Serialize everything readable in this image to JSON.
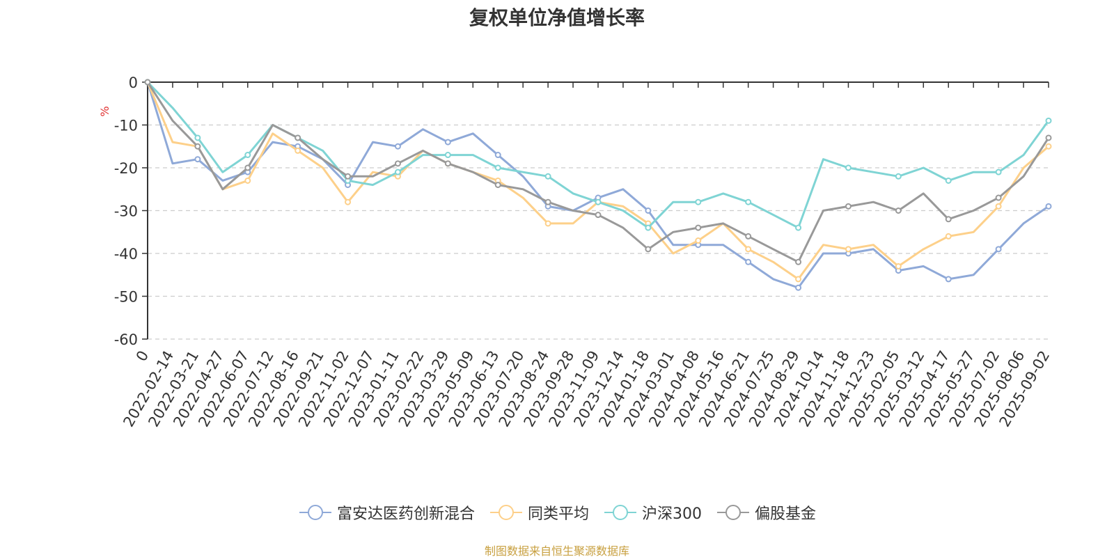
{
  "chart_data": {
    "type": "line",
    "title": "复权单位净值增长率",
    "ylabel": "%",
    "xlabel": "",
    "ylim": [
      -60,
      0
    ],
    "yticks": [
      0,
      -10,
      -20,
      -30,
      -40,
      -50,
      -60
    ],
    "grid": true,
    "legend_position": "bottom",
    "categories": [
      "0",
      "2022-02-14",
      "2022-03-21",
      "2022-04-27",
      "2022-06-07",
      "2022-07-12",
      "2022-08-16",
      "2022-09-21",
      "2022-11-02",
      "2022-12-07",
      "2023-01-11",
      "2023-02-22",
      "2023-03-29",
      "2023-05-09",
      "2023-06-13",
      "2023-07-20",
      "2023-08-24",
      "2023-09-28",
      "2023-11-09",
      "2023-12-14",
      "2024-01-18",
      "2024-03-01",
      "2024-04-08",
      "2024-05-16",
      "2024-06-21",
      "2024-07-25",
      "2024-08-29",
      "2024-10-14",
      "2024-11-18",
      "2024-12-23",
      "2025-02-05",
      "2025-03-12",
      "2025-04-17",
      "2025-05-27",
      "2025-07-02",
      "2025-08-06",
      "2025-09-02"
    ],
    "series": [
      {
        "name": "富安达医药创新混合",
        "color": "#8fa9d8",
        "values": [
          0,
          -19,
          -18,
          -23,
          -21,
          -14,
          -15,
          -18,
          -24,
          -14,
          -15,
          -11,
          -14,
          -12,
          -17,
          -22,
          -29,
          -30,
          -27,
          -25,
          -30,
          -38,
          -38,
          -38,
          -42,
          -46,
          -48,
          -40,
          -40,
          -39,
          -44,
          -43,
          -46,
          -45,
          -39,
          -33,
          -29
        ]
      },
      {
        "name": "同类平均",
        "color": "#fdd08a",
        "values": [
          0,
          -14,
          -15,
          -25,
          -23,
          -12,
          -16,
          -20,
          -28,
          -21,
          -22,
          -16,
          -19,
          -21,
          -23,
          -27,
          -33,
          -33,
          -28,
          -29,
          -33,
          -40,
          -37,
          -33,
          -39,
          -42,
          -46,
          -38,
          -39,
          -38,
          -43,
          -39,
          -36,
          -35,
          -29,
          -20,
          -15
        ]
      },
      {
        "name": "沪深300",
        "color": "#7fd4d4",
        "values": [
          0,
          -6,
          -13,
          -21,
          -17,
          -10,
          -13,
          -16,
          -23,
          -24,
          -21,
          -17,
          -17,
          -17,
          -20,
          -21,
          -22,
          -26,
          -28,
          -30,
          -34,
          -28,
          -28,
          -26,
          -28,
          -31,
          -34,
          -18,
          -20,
          -21,
          -22,
          -20,
          -23,
          -21,
          -21,
          -17,
          -9
        ]
      },
      {
        "name": "偏股基金",
        "color": "#999999",
        "values": [
          0,
          -9,
          -15,
          -25,
          -20,
          -10,
          -13,
          -18,
          -22,
          -22,
          -19,
          -16,
          -19,
          -21,
          -24,
          -25,
          -28,
          -30,
          -31,
          -34,
          -39,
          -35,
          -34,
          -33,
          -36,
          -39,
          -42,
          -30,
          -29,
          -28,
          -30,
          -26,
          -32,
          -30,
          -27,
          -22,
          -13
        ]
      }
    ]
  },
  "source_note": "制图数据来自恒生聚源数据库"
}
